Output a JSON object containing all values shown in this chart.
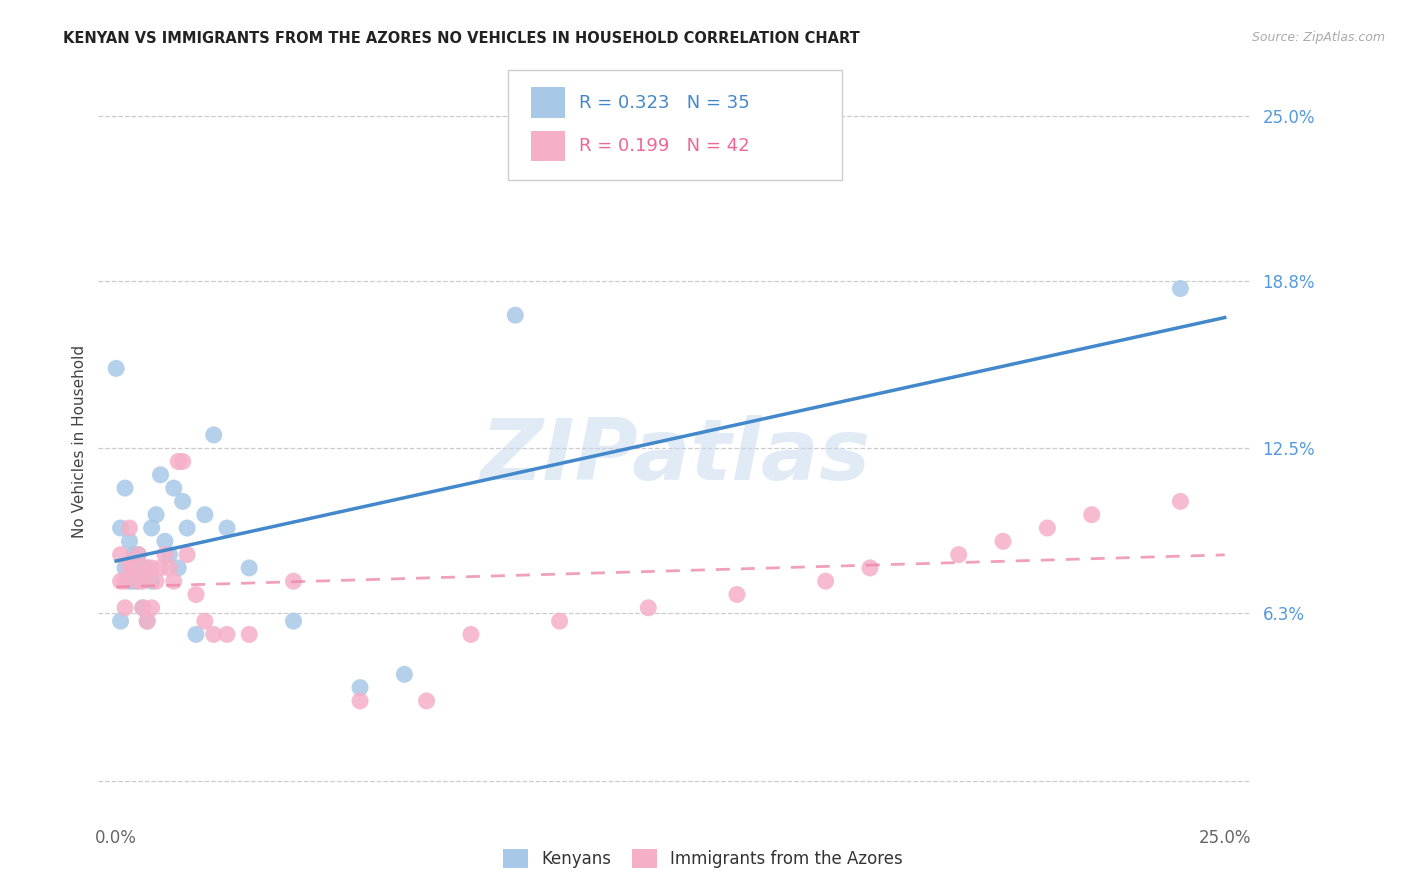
{
  "title": "KENYAN VS IMMIGRANTS FROM THE AZORES NO VEHICLES IN HOUSEHOLD CORRELATION CHART",
  "source": "Source: ZipAtlas.com",
  "ylabel": "No Vehicles in Household",
  "x_min": 0.0,
  "x_max": 0.25,
  "y_ticks": [
    0.0,
    0.063,
    0.125,
    0.188,
    0.25
  ],
  "y_tick_labels": [
    "",
    "6.3%",
    "12.5%",
    "18.8%",
    "25.0%"
  ],
  "color_blue": "#a8c8e8",
  "color_pink": "#f5b0c8",
  "line_blue": "#4488cc",
  "line_pink": "#ee88aa",
  "watermark_text": "ZIPatlas",
  "kenyans_x": [
    0.001,
    0.002,
    0.002,
    0.003,
    0.003,
    0.004,
    0.004,
    0.005,
    0.005,
    0.006,
    0.006,
    0.007,
    0.007,
    0.008,
    0.008,
    0.009,
    0.01,
    0.011,
    0.012,
    0.013,
    0.014,
    0.015,
    0.016,
    0.018,
    0.02,
    0.022,
    0.025,
    0.03,
    0.04,
    0.055,
    0.065,
    0.09,
    0.0,
    0.24,
    0.001
  ],
  "kenyans_y": [
    0.095,
    0.08,
    0.11,
    0.075,
    0.09,
    0.075,
    0.085,
    0.085,
    0.075,
    0.065,
    0.08,
    0.06,
    0.08,
    0.075,
    0.095,
    0.1,
    0.115,
    0.09,
    0.085,
    0.11,
    0.08,
    0.105,
    0.095,
    0.055,
    0.1,
    0.13,
    0.095,
    0.08,
    0.06,
    0.035,
    0.04,
    0.175,
    0.155,
    0.185,
    0.06
  ],
  "azores_x": [
    0.001,
    0.001,
    0.002,
    0.002,
    0.003,
    0.003,
    0.004,
    0.005,
    0.005,
    0.006,
    0.006,
    0.007,
    0.007,
    0.008,
    0.008,
    0.009,
    0.01,
    0.011,
    0.012,
    0.013,
    0.014,
    0.015,
    0.016,
    0.018,
    0.02,
    0.022,
    0.025,
    0.03,
    0.04,
    0.055,
    0.07,
    0.08,
    0.1,
    0.12,
    0.14,
    0.16,
    0.17,
    0.19,
    0.2,
    0.21,
    0.22,
    0.24
  ],
  "azores_y": [
    0.085,
    0.075,
    0.075,
    0.065,
    0.095,
    0.08,
    0.08,
    0.085,
    0.075,
    0.075,
    0.065,
    0.06,
    0.08,
    0.08,
    0.065,
    0.075,
    0.08,
    0.085,
    0.08,
    0.075,
    0.12,
    0.12,
    0.085,
    0.07,
    0.06,
    0.055,
    0.055,
    0.055,
    0.075,
    0.03,
    0.03,
    0.055,
    0.06,
    0.065,
    0.07,
    0.075,
    0.08,
    0.085,
    0.09,
    0.095,
    0.1,
    0.105
  ]
}
